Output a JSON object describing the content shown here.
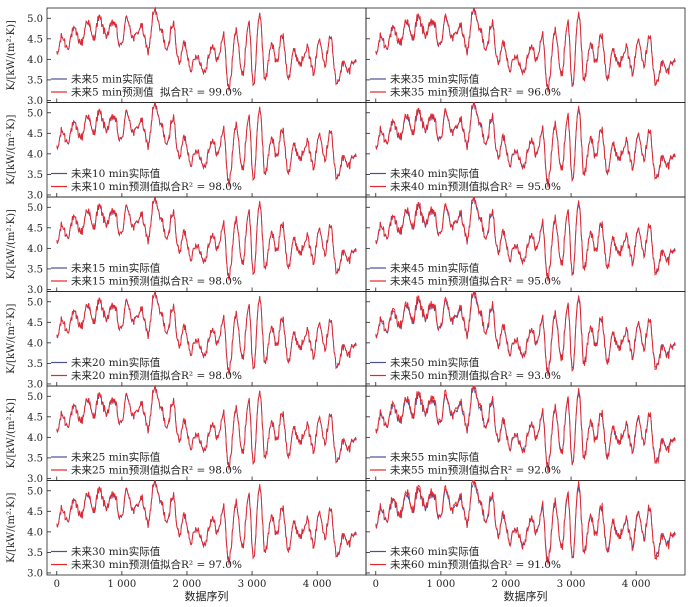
{
  "figure": {
    "ylabel": "K/[kW/(m²·K)]",
    "xlabel": "数据序列",
    "x_ticks": [
      "0",
      "1 000",
      "2 000",
      "3 000",
      "4 000"
    ],
    "y_ticks": [
      "3.0",
      "3.5",
      "4.0",
      "4.5",
      "5.0"
    ],
    "colors": {
      "actual": "#4a4f9a",
      "predicted": "#e8262b"
    }
  },
  "chart_data": [
    {
      "type": "line",
      "legend": [
        "未来5 min实际值",
        "未来5 min预测值"
      ],
      "fit_label": "拟合R² = 99.0%",
      "r2": 99.0,
      "xlim": [
        -150,
        4750
      ],
      "ylim": [
        2.95,
        5.25
      ]
    },
    {
      "type": "line",
      "legend": [
        "未来35 min实际值",
        "未来35 min预测值"
      ],
      "fit_label": "拟合R² = 96.0%",
      "r2": 96.0,
      "xlim": [
        -150,
        4750
      ],
      "ylim": [
        2.95,
        5.25
      ]
    },
    {
      "type": "line",
      "legend": [
        "未来10 min实际值",
        "未来10 min预测值"
      ],
      "fit_label": "拟合R² = 98.0%",
      "r2": 98.0,
      "xlim": [
        -150,
        4750
      ],
      "ylim": [
        2.95,
        5.25
      ]
    },
    {
      "type": "line",
      "legend": [
        "未来40 min实际值",
        "未来40 min预测值"
      ],
      "fit_label": "拟合R² = 95.0%",
      "r2": 95.0,
      "xlim": [
        -150,
        4750
      ],
      "ylim": [
        2.95,
        5.25
      ]
    },
    {
      "type": "line",
      "legend": [
        "未来15 min实际值",
        "未来15 min预测值"
      ],
      "fit_label": "拟合R² = 98.0%",
      "r2": 98.0,
      "xlim": [
        -150,
        4750
      ],
      "ylim": [
        2.95,
        5.25
      ]
    },
    {
      "type": "line",
      "legend": [
        "未来45 min实际值",
        "未来45 min预测值"
      ],
      "fit_label": "拟合R² = 95.0%",
      "r2": 95.0,
      "xlim": [
        -150,
        4750
      ],
      "ylim": [
        2.95,
        5.25
      ]
    },
    {
      "type": "line",
      "legend": [
        "未来20 min实际值",
        "未来20 min预测值"
      ],
      "fit_label": "拟合R² = 98.0%",
      "r2": 98.0,
      "xlim": [
        -150,
        4750
      ],
      "ylim": [
        2.95,
        5.25
      ]
    },
    {
      "type": "line",
      "legend": [
        "未来50 min实际值",
        "未来50 min预测值"
      ],
      "fit_label": "拟合R² = 93.0%",
      "r2": 93.0,
      "xlim": [
        -150,
        4750
      ],
      "ylim": [
        2.95,
        5.25
      ]
    },
    {
      "type": "line",
      "legend": [
        "未来25 min实际值",
        "未来25 min预测值"
      ],
      "fit_label": "拟合R² = 98.0%",
      "r2": 98.0,
      "xlim": [
        -150,
        4750
      ],
      "ylim": [
        2.95,
        5.25
      ]
    },
    {
      "type": "line",
      "legend": [
        "未来55 min实际值",
        "未来55 min预测值"
      ],
      "fit_label": "拟合R² = 92.0%",
      "r2": 92.0,
      "xlim": [
        -150,
        4750
      ],
      "ylim": [
        2.95,
        5.25
      ]
    },
    {
      "type": "line",
      "legend": [
        "未来30 min实际值",
        "未来30 min预测值"
      ],
      "fit_label": "拟合R² = 97.0%",
      "r2": 97.0,
      "xlim": [
        -150,
        4750
      ],
      "ylim": [
        2.95,
        5.25
      ]
    },
    {
      "type": "line",
      "legend": [
        "未来60 min实际值",
        "未来60 min预测值"
      ],
      "fit_label": "拟合R² = 91.0%",
      "r2": 91.0,
      "xlim": [
        -150,
        4750
      ],
      "ylim": [
        2.95,
        5.25
      ]
    }
  ]
}
